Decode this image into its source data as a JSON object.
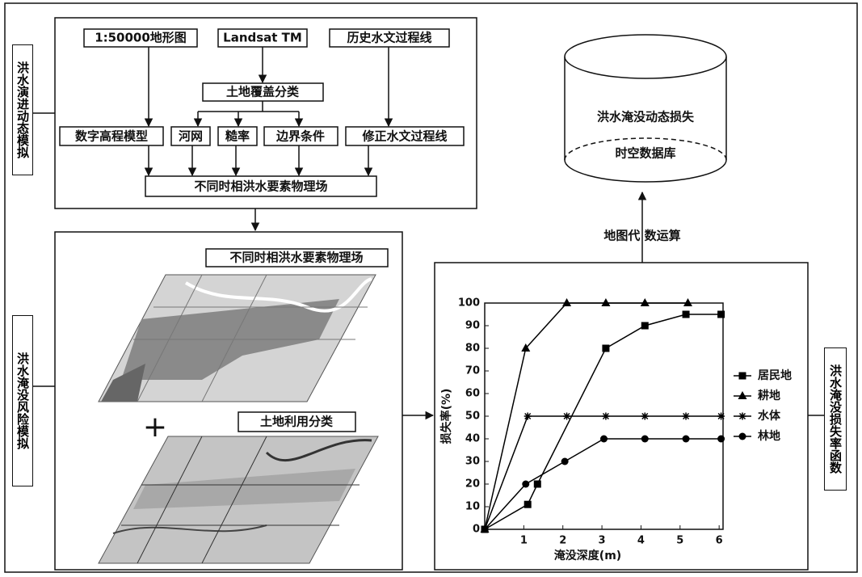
{
  "side_labels": [
    "洪水演进动态模拟",
    "洪水淹没风险模拟",
    "洪水淹没损失率函数"
  ],
  "top_panel": {
    "inputs": [
      "1:50000地形图",
      "Landsat TM",
      "历史水文过程线"
    ],
    "classification": "土地覆盖分类",
    "parameters": [
      "数字高程模型",
      "河网",
      "糙率",
      "边界条件",
      "修正水文过程线"
    ],
    "output": "不同时相洪水要素物理场"
  },
  "middle_panel": {
    "field_label": "不同时相洪水要素物理场",
    "plus": "+",
    "landuse_label": "土地利用分类"
  },
  "operation": "地图代 数运算",
  "database": [
    "洪水淹没动态损失",
    "时空数据库"
  ],
  "chart_data": {
    "type": "line",
    "xlabel": "淹没深度(m)",
    "ylabel": "损失率(%)",
    "xlim": [
      0,
      6.1
    ],
    "ylim": [
      0,
      100
    ],
    "xticks": [
      1,
      2,
      3,
      4,
      5,
      6
    ],
    "yticks": [
      0,
      10,
      20,
      30,
      40,
      50,
      60,
      70,
      80,
      90,
      100
    ],
    "series": [
      {
        "name": "居民地",
        "color": "#000000",
        "marker": "square",
        "x": [
          0,
          1.1,
          1.35,
          3.1,
          4.1,
          5.15,
          6.05
        ],
        "values": [
          0,
          11,
          20,
          80,
          90,
          95,
          95
        ]
      },
      {
        "name": "耕地",
        "color": "#000000",
        "marker": "triangle",
        "x": [
          0,
          1.05,
          2.1,
          3.1,
          4.1,
          5.2
        ],
        "values": [
          0,
          80,
          100,
          100,
          100,
          100
        ]
      },
      {
        "name": "水体",
        "color": "#000000",
        "marker": "asterisk",
        "x": [
          0,
          1.1,
          2.1,
          3.1,
          4.1,
          5.15,
          6.05
        ],
        "values": [
          0,
          50,
          50,
          50,
          50,
          50,
          50
        ]
      },
      {
        "name": "林地",
        "color": "#000000",
        "marker": "circle",
        "x": [
          0,
          1.05,
          2.05,
          3.05,
          4.1,
          5.15,
          6.05
        ],
        "values": [
          0,
          20,
          30,
          40,
          40,
          40,
          40
        ]
      }
    ]
  }
}
